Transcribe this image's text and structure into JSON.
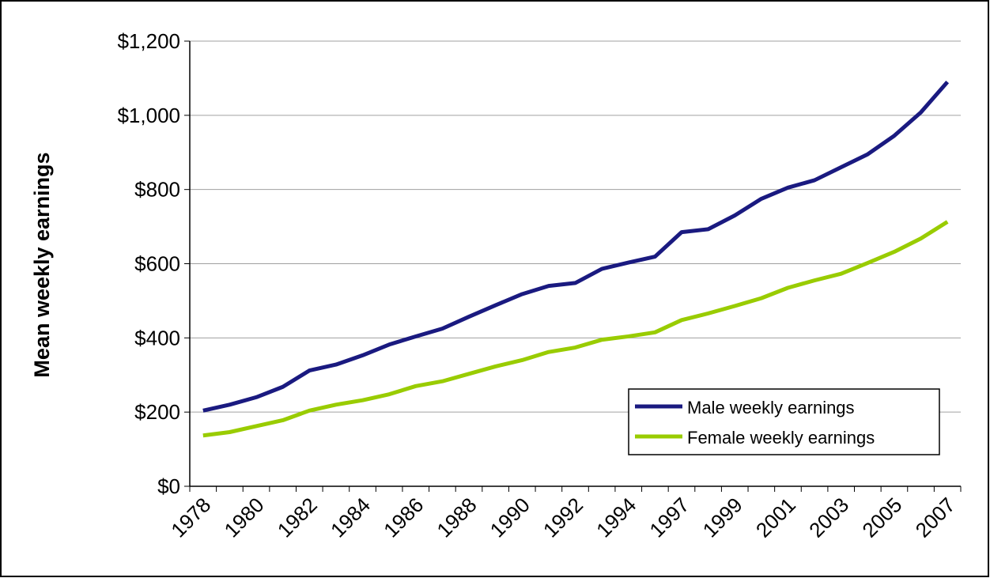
{
  "chart_data": {
    "type": "line",
    "y_label": "Mean weekly earnings",
    "categories": [
      "1978",
      null,
      "1980",
      null,
      "1982",
      null,
      "1984",
      null,
      "1986",
      null,
      "1988",
      null,
      "1990",
      null,
      "1992",
      null,
      "1994",
      null,
      "1997",
      null,
      "1999",
      null,
      "2001",
      null,
      "2003",
      null,
      "2005",
      null,
      "2007"
    ],
    "series": [
      {
        "name": "Male weekly earnings",
        "color": "#1a1a80",
        "values": [
          204,
          220,
          240,
          268,
          312,
          328,
          353,
          382,
          404,
          425,
          457,
          488,
          518,
          540,
          548,
          586,
          603,
          619,
          685,
          693,
          730,
          775,
          805,
          825,
          860,
          895,
          945,
          1008,
          1090
        ]
      },
      {
        "name": "Female weekly earnings",
        "color": "#99cc00",
        "values": [
          137,
          146,
          162,
          178,
          204,
          220,
          232,
          248,
          270,
          283,
          303,
          323,
          340,
          362,
          374,
          395,
          404,
          415,
          448,
          466,
          486,
          507,
          535,
          555,
          573,
          602,
          632,
          668,
          713
        ]
      }
    ],
    "ylim": [
      0,
      1200
    ],
    "yticks": [
      {
        "value": 0,
        "label": "$0"
      },
      {
        "value": 200,
        "label": "$200"
      },
      {
        "value": 400,
        "label": "$400"
      },
      {
        "value": 600,
        "label": "$600"
      },
      {
        "value": 800,
        "label": "$800"
      },
      {
        "value": 1000,
        "label": "$1,000"
      },
      {
        "value": 1200,
        "label": "$1,200"
      }
    ],
    "grid": true,
    "legend": "lower-right"
  }
}
